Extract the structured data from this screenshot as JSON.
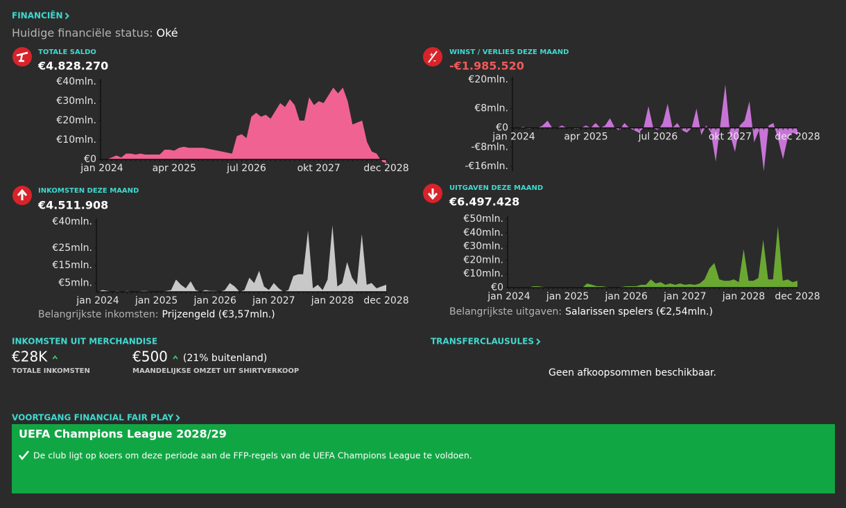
{
  "header": {
    "title": "FINANCIËN",
    "status_label": "Huidige financiële status:",
    "status_value": "Oké"
  },
  "chart_data": [
    {
      "type": "area",
      "title": "TOTALE SALDO",
      "headline": "€4.828.270",
      "headline_color": "#ffffff",
      "color": "#f06292",
      "categories": [
        "jan 2024",
        null,
        null,
        null,
        null,
        null,
        null,
        null,
        null,
        null,
        null,
        null,
        null,
        null,
        null,
        "apr 2025",
        null,
        null,
        null,
        null,
        null,
        null,
        null,
        null,
        null,
        null,
        null,
        null,
        null,
        null,
        "jul 2026",
        null,
        null,
        null,
        null,
        null,
        null,
        null,
        null,
        null,
        null,
        null,
        null,
        null,
        null,
        "okt 2027",
        null,
        null,
        null,
        null,
        null,
        null,
        null,
        null,
        null,
        null,
        null,
        null,
        null,
        "dec 2028"
      ],
      "values": [
        0,
        0,
        1,
        2,
        1,
        3,
        3,
        2.5,
        3,
        2.5,
        2.5,
        2.5,
        2.5,
        5,
        5,
        4.5,
        6,
        6.5,
        6,
        6,
        6,
        6,
        5.5,
        5,
        4.5,
        4,
        3.5,
        3,
        12,
        13,
        11,
        22,
        24,
        22,
        23,
        21,
        25,
        29,
        27,
        31,
        28,
        20,
        20,
        32,
        28,
        30,
        29,
        33,
        37,
        34,
        37,
        30,
        18,
        19,
        20,
        9,
        4,
        3,
        -1,
        -2
      ],
      "ylim": [
        0,
        40
      ],
      "yticks": [
        {
          "value": 0,
          "label": "€0"
        },
        {
          "value": 10,
          "label": "€10mln."
        },
        {
          "value": 20,
          "label": "€20mln."
        },
        {
          "value": 30,
          "label": "€30mln."
        },
        {
          "value": 40,
          "label": "€40mln."
        }
      ]
    },
    {
      "type": "area",
      "title": "WINST / VERLIES DEZE MAAND",
      "headline": "-€1.985.520",
      "headline_color": "#f05a5a",
      "color": "#c774d6",
      "categories": [
        "jan 2024",
        null,
        null,
        null,
        null,
        null,
        null,
        null,
        null,
        null,
        null,
        null,
        null,
        null,
        null,
        "apr 2025",
        null,
        null,
        null,
        null,
        null,
        null,
        null,
        null,
        null,
        null,
        null,
        null,
        null,
        null,
        "jul 2026",
        null,
        null,
        null,
        null,
        null,
        null,
        null,
        null,
        null,
        null,
        null,
        null,
        null,
        null,
        "okt 2027",
        null,
        null,
        null,
        null,
        null,
        null,
        null,
        null,
        null,
        null,
        null,
        null,
        null,
        "dec 2028"
      ],
      "values": [
        0,
        0,
        0.5,
        -0.5,
        0,
        0,
        1,
        3,
        0,
        0,
        1,
        0,
        0,
        -0.5,
        0,
        1,
        0,
        2,
        0,
        1,
        4,
        0,
        -1,
        2,
        0,
        -1,
        -2,
        0,
        9,
        0,
        -1,
        2,
        10,
        0,
        2,
        -1,
        -2,
        0,
        8,
        -3,
        1,
        -2,
        -14,
        2,
        18,
        -3,
        -10,
        1,
        3,
        11,
        -6,
        -1,
        -18,
        1,
        2,
        -5,
        -13,
        -4,
        -2,
        -3
      ],
      "ylim": [
        -18,
        20
      ],
      "yticks": [
        {
          "value": -16,
          "label": "-€16mln."
        },
        {
          "value": -8,
          "label": "-€8mln."
        },
        {
          "value": 0,
          "label": "€0"
        },
        {
          "value": 8,
          "label": "€8mln."
        },
        {
          "value": 20,
          "label": "€20mln."
        }
      ]
    },
    {
      "type": "area",
      "title": "INKOMSTEN DEZE MAAND",
      "headline": "€4.511.908",
      "headline_color": "#ffffff",
      "color": "#c8c8c8",
      "categories": [
        "jan 2024",
        null,
        null,
        null,
        null,
        null,
        null,
        null,
        null,
        null,
        null,
        null,
        "jan 2025",
        null,
        null,
        null,
        null,
        null,
        null,
        null,
        null,
        null,
        null,
        null,
        "jan 2026",
        null,
        null,
        null,
        null,
        null,
        null,
        null,
        null,
        null,
        null,
        null,
        "jan 2027",
        null,
        null,
        null,
        null,
        null,
        null,
        null,
        null,
        null,
        null,
        null,
        "jan 2028",
        null,
        null,
        null,
        null,
        null,
        null,
        null,
        null,
        null,
        null,
        "dec 2028"
      ],
      "values": [
        0,
        1,
        0.5,
        0,
        0.5,
        0,
        0.5,
        0,
        0,
        0.5,
        0.5,
        0,
        0,
        0,
        0.5,
        1,
        7,
        4,
        2,
        6,
        1,
        0,
        1,
        0.5,
        0.5,
        0,
        1,
        5,
        3,
        0,
        1,
        8,
        5,
        12,
        3,
        1,
        5,
        2,
        0,
        1,
        9,
        10,
        10,
        35,
        2,
        4,
        1,
        7,
        38,
        3,
        5,
        17,
        8,
        4,
        33,
        4,
        5,
        2,
        3,
        4
      ],
      "ylim": [
        0,
        40
      ],
      "yticks": [
        {
          "value": 5,
          "label": "€5mln."
        },
        {
          "value": 15,
          "label": "€15mln."
        },
        {
          "value": 25,
          "label": "€25mln."
        },
        {
          "value": 40,
          "label": "€40mln."
        }
      ],
      "footnote_label": "Belangrijkste inkomsten:",
      "footnote_value": "Prijzengeld (€3,57mln.)"
    },
    {
      "type": "area",
      "title": "UITGAVEN DEZE MAAND",
      "headline": "€6.497.428",
      "headline_color": "#ffffff",
      "color": "#6aa832",
      "categories": [
        "jan 2024",
        null,
        null,
        null,
        null,
        null,
        null,
        null,
        null,
        null,
        null,
        null,
        "jan 2025",
        null,
        null,
        null,
        null,
        null,
        null,
        null,
        null,
        null,
        null,
        null,
        "jan 2026",
        null,
        null,
        null,
        null,
        null,
        null,
        null,
        null,
        null,
        null,
        null,
        "jan 2027",
        null,
        null,
        null,
        null,
        null,
        null,
        null,
        null,
        null,
        null,
        null,
        "jan 2028",
        null,
        null,
        null,
        null,
        null,
        null,
        null,
        null,
        null,
        null,
        "dec 2028"
      ],
      "values": [
        0,
        0,
        0,
        0,
        0,
        1,
        1,
        0.5,
        0,
        0,
        0,
        0,
        0,
        0,
        0,
        0,
        3,
        2,
        1,
        1,
        0.5,
        0,
        0,
        0.5,
        1,
        1,
        1,
        2,
        2,
        6,
        3,
        4,
        2,
        3,
        2,
        3,
        2,
        2.5,
        2,
        3,
        6,
        14,
        18,
        6,
        5,
        5,
        6,
        4,
        28,
        5,
        5,
        7,
        35,
        6,
        6,
        45,
        5,
        6,
        4,
        5
      ],
      "ylim": [
        0,
        50
      ],
      "yticks": [
        {
          "value": 0,
          "label": "€0"
        },
        {
          "value": 10,
          "label": "€10mln."
        },
        {
          "value": 20,
          "label": "€20mln."
        },
        {
          "value": 30,
          "label": "€30mln."
        },
        {
          "value": 40,
          "label": "€40mln."
        },
        {
          "value": 50,
          "label": "€50mln."
        }
      ],
      "footnote_label": "Belangrijkste uitgaven:",
      "footnote_value": "Salarissen spelers (€2,54mln.)"
    }
  ],
  "merchandise": {
    "title": "INKOMSTEN UIT MERCHANDISE",
    "total": "€28K",
    "total_label": "TOTALE INKOMSTEN",
    "monthly": "€500",
    "monthly_note": "(21% buitenland)",
    "monthly_label": "MAANDELIJKSE OMZET UIT SHIRTVERKOOP"
  },
  "transfer_clauses": {
    "title": "TRANSFERCLAUSULES",
    "message": "Geen afkoopsommen beschikbaar."
  },
  "ffp": {
    "title": "VOORTGANG FINANCIAL FAIR PLAY",
    "competition": "UEFA Champions League 2028/29",
    "message": "De club ligt op koers om deze periode aan de FFP-regels van de UEFA Champions League te voldoen."
  }
}
